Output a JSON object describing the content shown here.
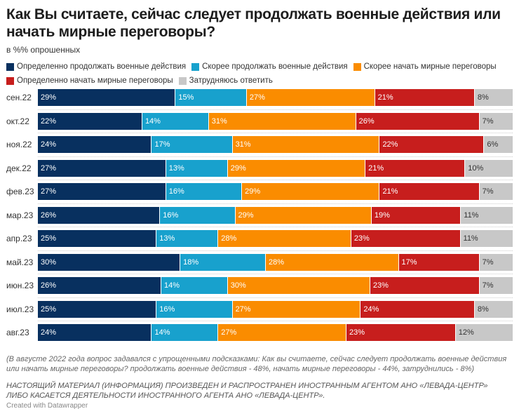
{
  "title": "Как Вы считаете, сейчас следует продолжать военные действия или начать мирные переговоры?",
  "subtitle": "в %% опрошенных",
  "chart_data": {
    "type": "bar",
    "stacked": true,
    "orientation": "horizontal",
    "categories": [
      "сен.22",
      "окт.22",
      "ноя.22",
      "дек.22",
      "фев.23",
      "мар.23",
      "апр.23",
      "май.23",
      "июн.23",
      "июл.23",
      "авг.23"
    ],
    "series": [
      {
        "name": "Определенно продолжать военные действия",
        "color": "#08305f",
        "values": [
          29,
          22,
          24,
          27,
          27,
          26,
          25,
          30,
          26,
          25,
          24
        ]
      },
      {
        "name": "Скорее продолжать военные действия",
        "color": "#18a1cd",
        "values": [
          15,
          14,
          17,
          13,
          16,
          16,
          13,
          18,
          14,
          16,
          14
        ]
      },
      {
        "name": "Скорее начать мирные переговоры",
        "color": "#fa8c00",
        "values": [
          27,
          31,
          31,
          29,
          29,
          29,
          28,
          28,
          30,
          27,
          27
        ]
      },
      {
        "name": "Определенно начать мирные переговоры",
        "color": "#c71e1d",
        "values": [
          21,
          26,
          22,
          21,
          21,
          19,
          23,
          17,
          23,
          24,
          23
        ]
      },
      {
        "name": "Затрудняюсь ответить",
        "color": "#c8c8c8",
        "values": [
          8,
          7,
          6,
          10,
          7,
          11,
          11,
          7,
          7,
          8,
          12
        ]
      }
    ],
    "value_suffix": "%",
    "legend": "top"
  },
  "note": "(В августе 2022 года вопрос задавался с упрощенными подсказками: Как вы считаете, сейчас следует продолжать военные действия или начать мирные переговоры? продолжать военные действия - 48%, начать мирные переговоры - 44%, затруднились - 8%)",
  "disclaimer": "НАСТОЯЩИЙ МАТЕРИАЛ (ИНФОРМАЦИЯ) ПРОИЗВЕДЕН И РАСПРОСТРАНЕН ИНОСТРАННЫМ АГЕНТОМ АНО «ЛЕВАДА-ЦЕНТР» ЛИБО КАСАЕТСЯ ДЕЯТЕЛЬНОСТИ ИНОСТРАННОГО АГЕНТА АНО «ЛЕВАДА-ЦЕНТР».",
  "credit": "Created with Datawrapper"
}
